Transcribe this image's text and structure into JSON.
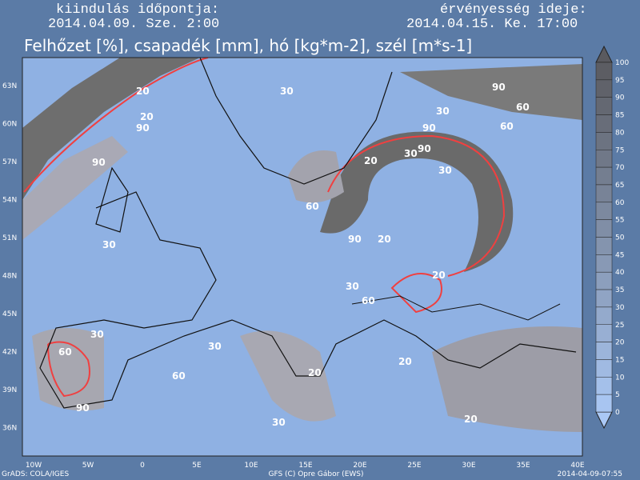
{
  "header": {
    "start_label": "kiindulás időpontja:",
    "start_value": "2014.04.09. Sze. 2:00",
    "valid_label": "érvényesség ideje:",
    "valid_value": "2014.04.15. Ke. 17:00"
  },
  "title": "Felhőzet [%], csapadék [mm], hó [kg*m-2], szél [m*s-1]",
  "lat_labels": [
    "63N",
    "60N",
    "57N",
    "54N",
    "51N",
    "48N",
    "45N",
    "42N",
    "39N",
    "36N"
  ],
  "lon_labels": [
    "10W",
    "5W",
    "0",
    "5E",
    "10E",
    "15E",
    "20E",
    "25E",
    "30E",
    "35E",
    "40E"
  ],
  "colorbar": {
    "ticks": [
      100,
      95,
      90,
      85,
      80,
      75,
      70,
      65,
      60,
      55,
      50,
      45,
      40,
      35,
      30,
      25,
      20,
      15,
      10,
      5,
      0
    ]
  },
  "map_labels": [
    "20",
    "20",
    "90",
    "90",
    "30",
    "90",
    "60",
    "30",
    "90",
    "30",
    "90",
    "20",
    "30",
    "60",
    "90",
    "20",
    "20",
    "30",
    "60",
    "30",
    "60",
    "30",
    "20",
    "60",
    "90",
    "30",
    "60",
    "20",
    "20",
    "30"
  ],
  "footer": {
    "left": "GrADS: COLA/IGES",
    "center": "GFS (C) Opre Gábor (EWS)",
    "right": "2014-04-09-07:55"
  }
}
